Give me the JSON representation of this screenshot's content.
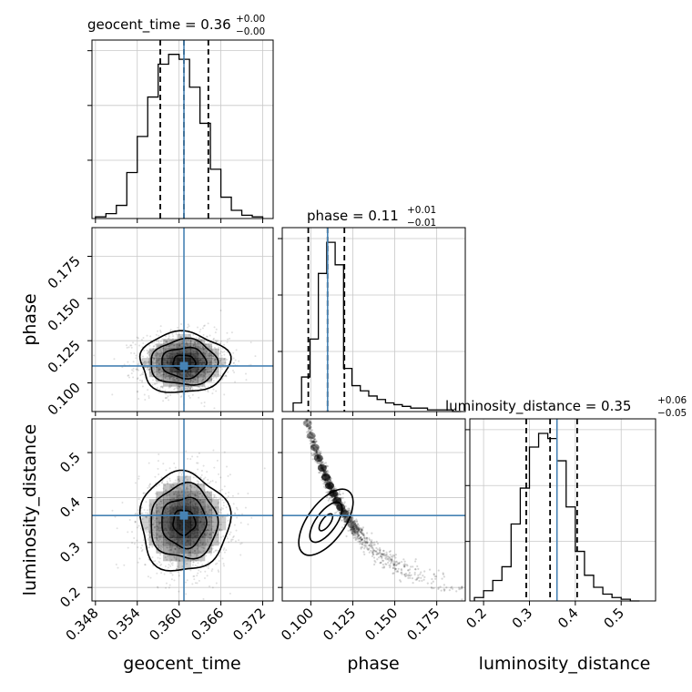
{
  "chart_data": {
    "type": "corner",
    "parameters": [
      "geocent_time",
      "phase",
      "luminosity_distance"
    ],
    "truths": {
      "geocent_time": 0.3607,
      "phase": 0.11,
      "luminosity_distance": 0.36
    },
    "colors": {
      "truth": "#4682b4",
      "histogram": "#000000",
      "quantile": "#000000",
      "grid": "#c8c8c8",
      "scatter": "#000000"
    },
    "grid": true,
    "titles": [
      {
        "param": "geocent_time",
        "text": "geocent_time = 0.36",
        "plus": "+0.00",
        "minus": "−0.00"
      },
      {
        "param": "phase",
        "text": "phase = 0.11",
        "plus": "+0.01",
        "minus": "−0.01"
      },
      {
        "param": "luminosity_distance",
        "text": "luminosity_distance = 0.35",
        "plus": "+0.06",
        "minus": "−0.05"
      }
    ],
    "axes": {
      "geocent_time": {
        "label": "geocent_time",
        "range": [
          0.3475,
          0.3735
        ],
        "ticks": [
          0.348,
          0.354,
          0.36,
          0.366,
          0.372
        ],
        "tick_labels": [
          "0.348",
          "0.354",
          "0.360",
          "0.366",
          "0.372"
        ]
      },
      "phase": {
        "label": "phase",
        "range": [
          0.083,
          0.192
        ],
        "ticks": [
          0.1,
          0.125,
          0.15,
          0.175
        ],
        "tick_labels": [
          "0.100",
          "0.125",
          "0.150",
          "0.175"
        ]
      },
      "luminosity_distance": {
        "label": "luminosity_distance",
        "range": [
          0.17,
          0.575
        ],
        "ticks": [
          0.2,
          0.3,
          0.4,
          0.5
        ],
        "tick_labels": [
          "0.2",
          "0.3",
          "0.4",
          "0.5"
        ]
      }
    },
    "histograms": {
      "geocent_time": {
        "bins": [
          0.348,
          0.3495,
          0.351,
          0.3525,
          0.354,
          0.3555,
          0.357,
          0.3585,
          0.36,
          0.3615,
          0.363,
          0.3645,
          0.366,
          0.3675,
          0.369,
          0.3705,
          0.372
        ],
        "counts": [
          1,
          3,
          8,
          28,
          50,
          74,
          94,
          100,
          97,
          80,
          58,
          30,
          13,
          5,
          2,
          1
        ],
        "quantiles": [
          0.3573,
          0.3607,
          0.3642
        ]
      },
      "phase": {
        "bins": [
          0.0895,
          0.0945,
          0.0995,
          0.1045,
          0.1095,
          0.1145,
          0.1195,
          0.1245,
          0.1295,
          0.1345,
          0.1395,
          0.1445,
          0.1495,
          0.1545,
          0.1595,
          0.1645,
          0.1695,
          0.1745,
          0.1795,
          0.1845,
          0.1895
        ],
        "counts": [
          5,
          20,
          42,
          80,
          98,
          85,
          25,
          15,
          12,
          9,
          7,
          5,
          4,
          3,
          2,
          2,
          1,
          1,
          1,
          0
        ],
        "quantiles": [
          0.0985,
          0.11,
          0.12
        ]
      },
      "luminosity_distance": {
        "bins": [
          0.18,
          0.2,
          0.22,
          0.24,
          0.26,
          0.28,
          0.3,
          0.32,
          0.34,
          0.36,
          0.38,
          0.4,
          0.42,
          0.44,
          0.46,
          0.48,
          0.5,
          0.52,
          0.54
        ],
        "counts": [
          2,
          6,
          12,
          20,
          45,
          66,
          90,
          98,
          95,
          82,
          55,
          29,
          15,
          8,
          4,
          2,
          1,
          0
        ],
        "quantiles": [
          0.293,
          0.345,
          0.404
        ]
      }
    },
    "pairs": [
      {
        "x": "geocent_time",
        "y": "phase",
        "center": [
          0.3607,
          0.112
        ],
        "sigma": [
          0.0032,
          0.009
        ],
        "correlation": 0.0
      },
      {
        "x": "geocent_time",
        "y": "luminosity_distance",
        "center": [
          0.3607,
          0.345
        ],
        "sigma": [
          0.0032,
          0.055
        ],
        "correlation": 0.0
      },
      {
        "x": "phase",
        "y": "luminosity_distance",
        "relation": "curved negative",
        "center": [
          0.112,
          0.34
        ]
      }
    ]
  }
}
